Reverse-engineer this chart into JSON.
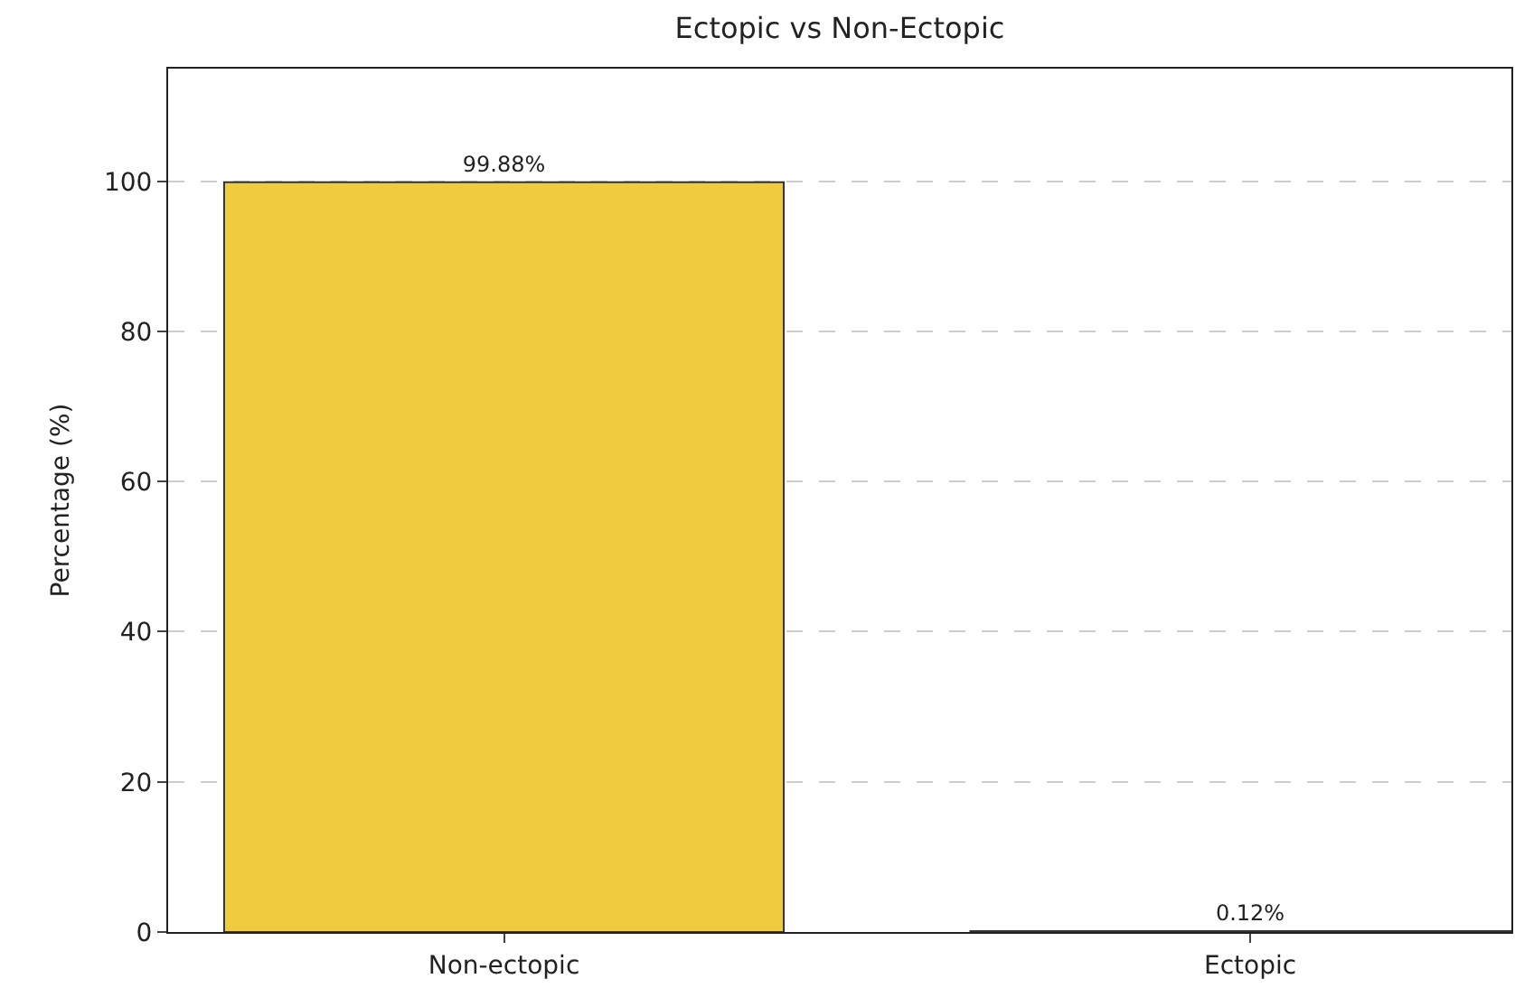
{
  "chart_data": {
    "type": "bar",
    "title": "Ectopic vs Non-Ectopic",
    "ylabel": "Percentage (%)",
    "categories": [
      "Non-ectopic",
      "Ectopic"
    ],
    "values": [
      99.88,
      0.12
    ],
    "value_labels": [
      "99.88%",
      "0.12%"
    ],
    "color": "#f0cb3d",
    "ylim": [
      0,
      115
    ],
    "yticks": [
      0,
      20,
      40,
      60,
      80,
      100
    ],
    "grid": "y",
    "legend": false
  }
}
